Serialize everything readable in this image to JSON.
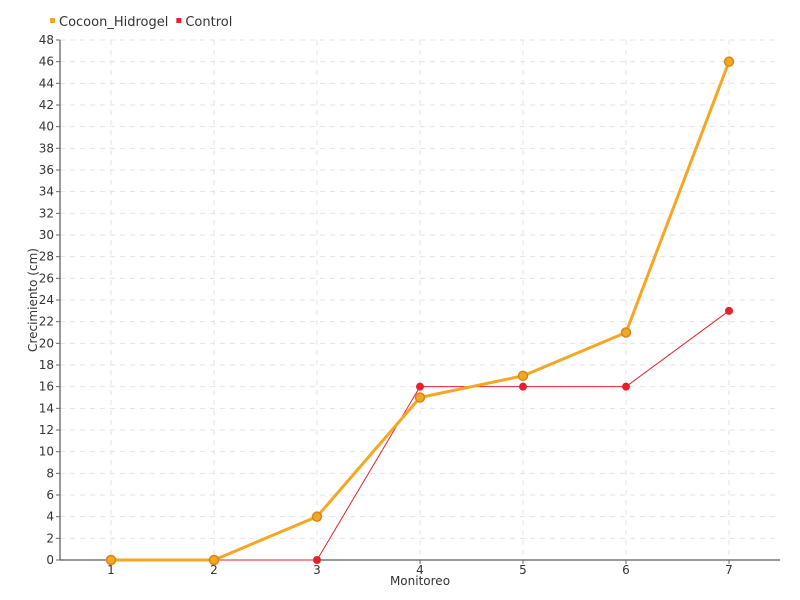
{
  "chart_data": {
    "type": "line",
    "categories": [
      "1",
      "2",
      "3",
      "4",
      "5",
      "6",
      "7"
    ],
    "xlabel": "Monitoreo",
    "ylabel": "Crecimiento (cm)",
    "ylim": [
      0,
      48
    ],
    "ytick_step": 2,
    "grid": true,
    "legend_position": "top-left",
    "series": [
      {
        "name": "Cocoon_Hidrogel",
        "color": "#f5a623",
        "marker_fill": "#f5a623",
        "marker_stroke": "#d4881a",
        "values": [
          0,
          0,
          4,
          15,
          17,
          21,
          46
        ]
      },
      {
        "name": "Control",
        "color": "#e3222e",
        "marker_fill": "#e3222e",
        "marker_stroke": "#e3222e",
        "values": [
          0,
          0,
          0,
          16,
          16,
          16,
          23
        ]
      }
    ]
  }
}
